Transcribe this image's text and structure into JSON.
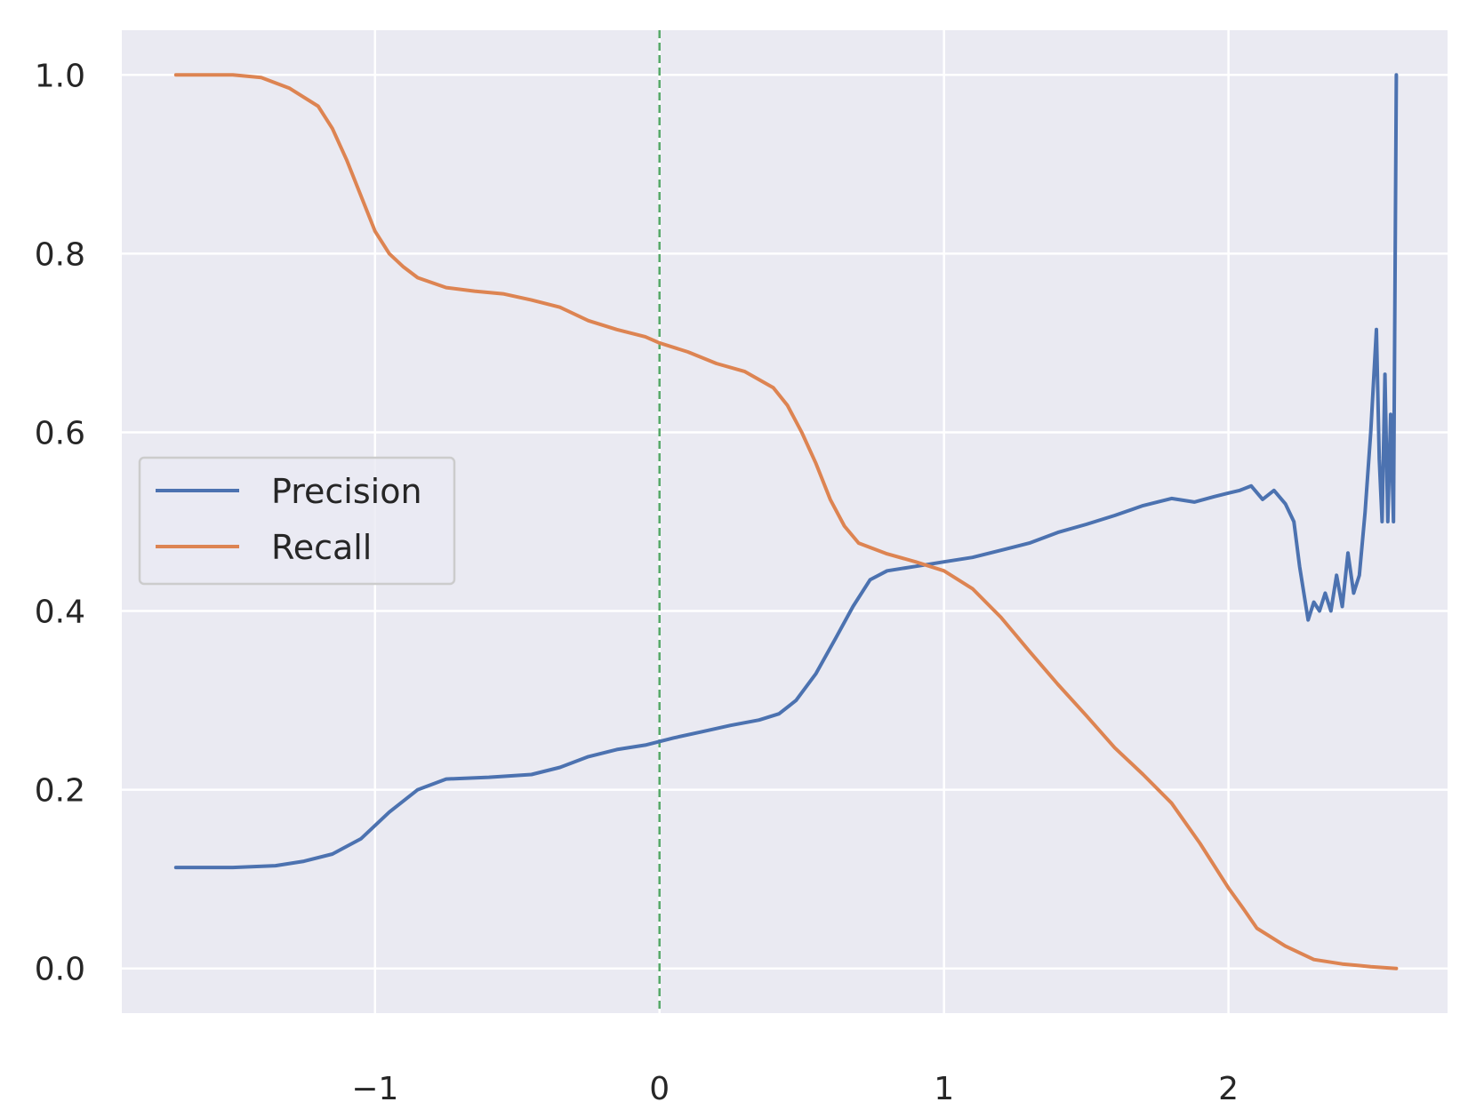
{
  "chart_data": {
    "type": "line",
    "title": "",
    "xlabel": "",
    "ylabel": "",
    "xlim": [
      -1.89,
      2.77
    ],
    "ylim": [
      -0.05,
      1.05
    ],
    "grid": true,
    "legend_position": "center-left",
    "x_ticks": [
      {
        "value": -1,
        "label": "−1"
      },
      {
        "value": 0,
        "label": "0"
      },
      {
        "value": 1,
        "label": "1"
      },
      {
        "value": 2,
        "label": "2"
      }
    ],
    "y_ticks": [
      {
        "value": 0.0,
        "label": "0.0"
      },
      {
        "value": 0.2,
        "label": "0.2"
      },
      {
        "value": 0.4,
        "label": "0.4"
      },
      {
        "value": 0.6,
        "label": "0.6"
      },
      {
        "value": 0.8,
        "label": "0.8"
      },
      {
        "value": 1.0,
        "label": "1.0"
      }
    ],
    "vertical_line": {
      "x": 0,
      "color": "#55a868",
      "style": "dashed"
    },
    "series": [
      {
        "name": "Precision",
        "color": "#4c72b0",
        "points": [
          [
            -1.7,
            0.113
          ],
          [
            -1.5,
            0.113
          ],
          [
            -1.35,
            0.115
          ],
          [
            -1.25,
            0.12
          ],
          [
            -1.15,
            0.128
          ],
          [
            -1.05,
            0.145
          ],
          [
            -0.95,
            0.175
          ],
          [
            -0.85,
            0.2
          ],
          [
            -0.75,
            0.212
          ],
          [
            -0.6,
            0.214
          ],
          [
            -0.45,
            0.217
          ],
          [
            -0.35,
            0.225
          ],
          [
            -0.25,
            0.237
          ],
          [
            -0.15,
            0.245
          ],
          [
            -0.05,
            0.25
          ],
          [
            0.05,
            0.258
          ],
          [
            0.15,
            0.265
          ],
          [
            0.25,
            0.272
          ],
          [
            0.35,
            0.278
          ],
          [
            0.42,
            0.285
          ],
          [
            0.48,
            0.3
          ],
          [
            0.55,
            0.33
          ],
          [
            0.62,
            0.37
          ],
          [
            0.68,
            0.405
          ],
          [
            0.74,
            0.435
          ],
          [
            0.8,
            0.445
          ],
          [
            0.9,
            0.45
          ],
          [
            1.0,
            0.455
          ],
          [
            1.1,
            0.46
          ],
          [
            1.2,
            0.468
          ],
          [
            1.3,
            0.476
          ],
          [
            1.4,
            0.488
          ],
          [
            1.5,
            0.497
          ],
          [
            1.6,
            0.507
          ],
          [
            1.7,
            0.518
          ],
          [
            1.8,
            0.526
          ],
          [
            1.88,
            0.522
          ],
          [
            1.95,
            0.528
          ],
          [
            2.0,
            0.532
          ],
          [
            2.04,
            0.535
          ],
          [
            2.08,
            0.54
          ],
          [
            2.12,
            0.525
          ],
          [
            2.16,
            0.535
          ],
          [
            2.2,
            0.52
          ],
          [
            2.23,
            0.5
          ],
          [
            2.25,
            0.45
          ],
          [
            2.28,
            0.39
          ],
          [
            2.3,
            0.41
          ],
          [
            2.32,
            0.4
          ],
          [
            2.34,
            0.42
          ],
          [
            2.36,
            0.4
          ],
          [
            2.38,
            0.44
          ],
          [
            2.4,
            0.405
          ],
          [
            2.42,
            0.465
          ],
          [
            2.44,
            0.42
          ],
          [
            2.46,
            0.44
          ],
          [
            2.48,
            0.51
          ],
          [
            2.5,
            0.6
          ],
          [
            2.52,
            0.715
          ],
          [
            2.53,
            0.57
          ],
          [
            2.54,
            0.5
          ],
          [
            2.55,
            0.665
          ],
          [
            2.56,
            0.5
          ],
          [
            2.57,
            0.62
          ],
          [
            2.58,
            0.5
          ],
          [
            2.59,
            1.0
          ]
        ]
      },
      {
        "name": "Recall",
        "color": "#dd8452",
        "points": [
          [
            -1.7,
            1.0
          ],
          [
            -1.5,
            1.0
          ],
          [
            -1.4,
            0.997
          ],
          [
            -1.3,
            0.985
          ],
          [
            -1.2,
            0.965
          ],
          [
            -1.15,
            0.94
          ],
          [
            -1.1,
            0.905
          ],
          [
            -1.05,
            0.865
          ],
          [
            -1.0,
            0.825
          ],
          [
            -0.95,
            0.8
          ],
          [
            -0.9,
            0.785
          ],
          [
            -0.85,
            0.773
          ],
          [
            -0.75,
            0.762
          ],
          [
            -0.65,
            0.758
          ],
          [
            -0.55,
            0.755
          ],
          [
            -0.45,
            0.748
          ],
          [
            -0.35,
            0.74
          ],
          [
            -0.25,
            0.725
          ],
          [
            -0.15,
            0.715
          ],
          [
            -0.05,
            0.707
          ],
          [
            0.0,
            0.7
          ],
          [
            0.1,
            0.69
          ],
          [
            0.2,
            0.677
          ],
          [
            0.3,
            0.668
          ],
          [
            0.4,
            0.65
          ],
          [
            0.45,
            0.63
          ],
          [
            0.5,
            0.6
          ],
          [
            0.55,
            0.565
          ],
          [
            0.6,
            0.525
          ],
          [
            0.65,
            0.495
          ],
          [
            0.7,
            0.476
          ],
          [
            0.8,
            0.464
          ],
          [
            0.9,
            0.455
          ],
          [
            1.0,
            0.445
          ],
          [
            1.1,
            0.425
          ],
          [
            1.2,
            0.393
          ],
          [
            1.3,
            0.355
          ],
          [
            1.4,
            0.318
          ],
          [
            1.5,
            0.283
          ],
          [
            1.6,
            0.247
          ],
          [
            1.7,
            0.217
          ],
          [
            1.8,
            0.185
          ],
          [
            1.9,
            0.14
          ],
          [
            2.0,
            0.09
          ],
          [
            2.05,
            0.068
          ],
          [
            2.1,
            0.045
          ],
          [
            2.2,
            0.025
          ],
          [
            2.3,
            0.01
          ],
          [
            2.4,
            0.005
          ],
          [
            2.5,
            0.002
          ],
          [
            2.59,
            0.0
          ]
        ]
      }
    ]
  }
}
